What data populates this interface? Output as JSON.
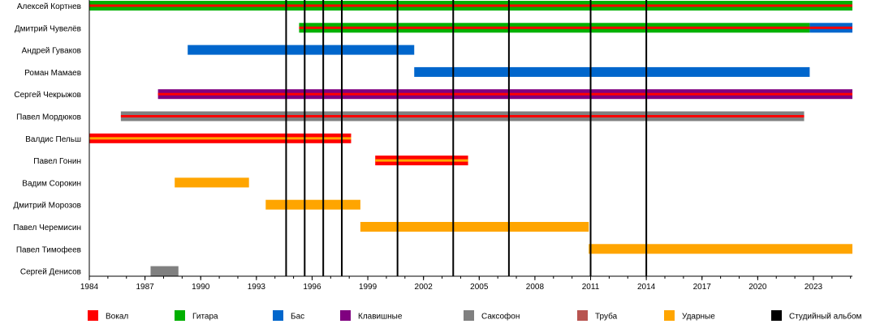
{
  "chart_data": {
    "type": "timeline",
    "xlim": [
      1984,
      2025.1
    ],
    "ticks": [
      1984,
      1987,
      1990,
      1993,
      1996,
      1999,
      2002,
      2005,
      2008,
      2011,
      2014,
      2017,
      2020,
      2023
    ],
    "grid": false,
    "legend_placement": "bottom",
    "colors": {
      "vocal": "#ff0000",
      "guitar": "#00b000",
      "bass": "#0066cc",
      "keys": "#800080",
      "sax": "#808080",
      "trumpet": "#b85450",
      "drums": "#ffa500",
      "album": "#000000"
    },
    "members": [
      {
        "name": "Алексей Кортнев",
        "bars": [
          {
            "role": "guitar",
            "from": 1984,
            "to": 2025.1,
            "stripe": "vocal"
          }
        ]
      },
      {
        "name": "Дмитрий Чувелёв",
        "bars": [
          {
            "role": "guitar",
            "from": 1995.3,
            "to": 2022.8,
            "stripe": "vocal"
          },
          {
            "role": "bass",
            "from": 2022.8,
            "to": 2025.1,
            "stripe": "vocal"
          }
        ]
      },
      {
        "name": "Андрей Гуваков",
        "bars": [
          {
            "role": "bass",
            "from": 1989.3,
            "to": 2001.5
          }
        ]
      },
      {
        "name": "Роман Мамаев",
        "bars": [
          {
            "role": "bass",
            "from": 2001.5,
            "to": 2022.8
          }
        ]
      },
      {
        "name": "Сергей Чекрыжов",
        "bars": [
          {
            "role": "keys",
            "from": 1987.7,
            "to": 2025.1,
            "stripe": "vocal"
          }
        ]
      },
      {
        "name": "Павел Мордюков",
        "bars": [
          {
            "role": "sax",
            "from": 1985.7,
            "to": 2022.5,
            "stripe": "vocal"
          }
        ]
      },
      {
        "name": "Валдис Пельш",
        "bars": [
          {
            "role": "vocal",
            "from": 1984,
            "to": 1998.1,
            "stripe": "drums"
          }
        ]
      },
      {
        "name": "Павел Гонин",
        "bars": [
          {
            "role": "vocal",
            "from": 1999.4,
            "to": 2004.4,
            "stripe": "drums"
          }
        ]
      },
      {
        "name": "Вадим Сорокин",
        "bars": [
          {
            "role": "drums",
            "from": 1988.6,
            "to": 1992.6
          }
        ]
      },
      {
        "name": "Дмитрий Морозов",
        "bars": [
          {
            "role": "drums",
            "from": 1993.5,
            "to": 1998.6
          }
        ]
      },
      {
        "name": "Павел Черемисин",
        "bars": [
          {
            "role": "drums",
            "from": 1998.6,
            "to": 2010.9
          }
        ]
      },
      {
        "name": "Павел Тимофеев",
        "bars": [
          {
            "role": "drums",
            "from": 2010.9,
            "to": 2025.1
          }
        ]
      },
      {
        "name": "Сергей Денисов",
        "bars": [
          {
            "role": "sax",
            "from": 1987.3,
            "to": 1988.8
          }
        ]
      }
    ],
    "albums": [
      1994.6,
      1995.6,
      1996.6,
      1997.6,
      2000.6,
      2003.6,
      2006.6,
      2011.0,
      2014.0
    ],
    "legend": [
      {
        "key": "vocal",
        "label": "Вокал"
      },
      {
        "key": "guitar",
        "label": "Гитара"
      },
      {
        "key": "bass",
        "label": "Бас"
      },
      {
        "key": "keys",
        "label": "Клавишные"
      },
      {
        "key": "sax",
        "label": "Саксофон"
      },
      {
        "key": "trumpet",
        "label": "Труба"
      },
      {
        "key": "drums",
        "label": "Ударные"
      },
      {
        "key": "album",
        "label": "Студийный альбом"
      }
    ]
  }
}
